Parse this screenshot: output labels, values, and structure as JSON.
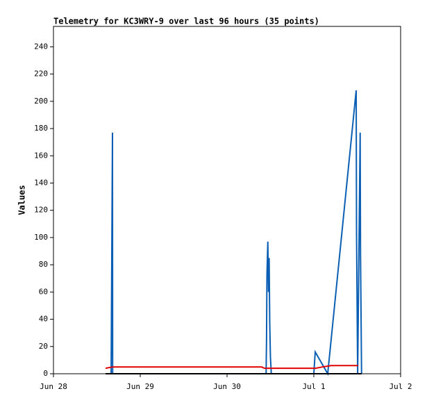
{
  "chart_data": {
    "type": "line",
    "title": "Telemetry for KC3WRY-9 over last 96 hours (35 points)",
    "ylabel": "Values",
    "xlim": [
      0,
      4
    ],
    "ylim": [
      0,
      255
    ],
    "xticks": [
      {
        "value": 0,
        "label": "Jun 28"
      },
      {
        "value": 1,
        "label": "Jun 29"
      },
      {
        "value": 2,
        "label": "Jun 30"
      },
      {
        "value": 3,
        "label": "Jul 1"
      },
      {
        "value": 4,
        "label": "Jul 2"
      }
    ],
    "yticks": [
      0,
      20,
      40,
      60,
      80,
      100,
      120,
      140,
      160,
      180,
      200,
      220,
      240
    ],
    "series": [
      {
        "color": "#0a5fb4",
        "x": [
          0.664,
          0.666,
          0.68,
          0.682,
          2.45,
          2.455,
          2.46,
          2.47,
          2.478,
          2.485,
          2.492,
          2.5,
          2.51,
          3.0,
          3.016,
          3.16,
          3.488,
          3.492,
          3.505,
          3.534,
          3.538,
          3.55
        ],
        "values": [
          0,
          17,
          177,
          0,
          0,
          25,
          73,
          97,
          60,
          85,
          37,
          12,
          0,
          0,
          16,
          0,
          208,
          105,
          0,
          177,
          88,
          0
        ]
      },
      {
        "color": "#e00000",
        "x": [
          0.6,
          0.68,
          2.4,
          2.43,
          3.02,
          3.1,
          3.2,
          3.51
        ],
        "values": [
          4,
          5,
          5,
          4,
          4,
          5,
          6,
          6
        ]
      },
      {
        "color": "#000000",
        "x": [
          0.6,
          3.55
        ],
        "values": [
          0,
          0
        ]
      }
    ]
  }
}
